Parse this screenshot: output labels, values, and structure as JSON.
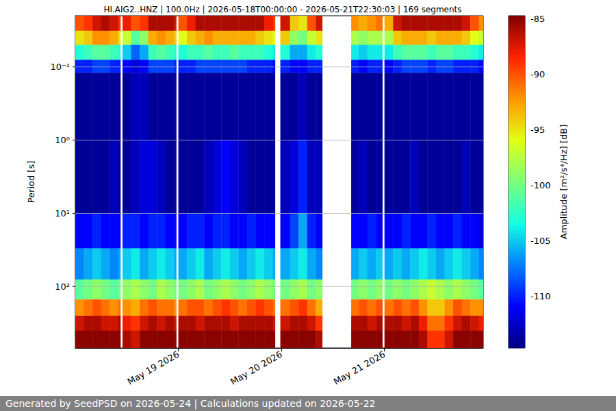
{
  "chart_data": {
    "type": "heatmap",
    "title": "HI.AIG2..HNZ | 100.0Hz | 2026-05-18T00:00:00 - 2026-05-21T22:30:03 | 169 segments",
    "y_label": "Period [s]",
    "footer": "Generated by SeedPSD on 2026-05-24 | Calculations updated on 2026-05-22",
    "log": "y",
    "grid": true,
    "xlim": [
      "2026-05-18T00:00:00",
      "2026-05-21T23:00:00"
    ],
    "xticks": [
      {
        "value": "2026-05-19T00:00:00",
        "label": "May 19 2026"
      },
      {
        "value": "2026-05-20T00:00:00",
        "label": "May 20 2026"
      },
      {
        "value": "2026-05-21T00:00:00",
        "label": "May 21 2026"
      }
    ],
    "ylim": [
      0.02,
      690
    ],
    "yticks": [
      {
        "value": 0.1,
        "label": "10⁻¹"
      },
      {
        "value": 1,
        "label": "10⁰"
      },
      {
        "value": 10,
        "label": "10¹"
      },
      {
        "value": 100,
        "label": "10²"
      }
    ],
    "x_bins": [
      "2026-05-18T00:00:00",
      "2026-05-18T02:00:00",
      "2026-05-18T04:00:00",
      "2026-05-18T06:00:00",
      "2026-05-18T08:00:00",
      "2026-05-18T10:00:00",
      "2026-05-18T10:30:00",
      "2026-05-18T11:00:00",
      "2026-05-18T13:00:00",
      "2026-05-18T15:00:00",
      "2026-05-18T17:00:00",
      "2026-05-18T19:00:00",
      "2026-05-18T21:00:00",
      "2026-05-18T23:00:00",
      "2026-05-18T23:30:00",
      "2026-05-19T00:00:00",
      "2026-05-19T02:00:00",
      "2026-05-19T04:00:00",
      "2026-05-19T06:00:00",
      "2026-05-19T08:00:00",
      "2026-05-19T10:00:00",
      "2026-05-19T12:00:00",
      "2026-05-19T14:00:00",
      "2026-05-19T16:00:00",
      "2026-05-19T18:00:00",
      "2026-05-19T20:00:00",
      "2026-05-19T22:00:00",
      "2026-05-19T22:30:00",
      "2026-05-19T23:45:00",
      "2026-05-20T02:00:00",
      "2026-05-20T04:00:00",
      "2026-05-20T06:00:00",
      "2026-05-20T08:00:00",
      "2026-05-20T09:30:00",
      "2026-05-20T16:15:00",
      "2026-05-20T18:00:00",
      "2026-05-20T20:00:00",
      "2026-05-20T22:00:00",
      "2026-05-20T23:30:00",
      "2026-05-21T00:00:00",
      "2026-05-21T02:00:00",
      "2026-05-21T04:00:00",
      "2026-05-21T06:00:00",
      "2026-05-21T08:00:00",
      "2026-05-21T10:00:00",
      "2026-05-21T12:00:00",
      "2026-05-21T14:00:00",
      "2026-05-21T16:00:00",
      "2026-05-21T18:00:00",
      "2026-05-21T20:00:00",
      "2026-05-21T22:00:00",
      "2026-05-21T23:00:00"
    ],
    "y_bins": [
      0.02,
      0.032,
      0.05,
      0.08,
      0.12,
      1,
      10,
      30,
      80,
      150,
      250,
      400,
      690
    ],
    "values": [
      [
        -90,
        -89,
        -87,
        -86,
        -87,
        -89,
        null,
        -88,
        -90,
        -89,
        -86,
        -86,
        -86,
        -87,
        null,
        -90,
        -88,
        -86,
        -86,
        -86,
        -86,
        -86,
        -86,
        -86,
        -86,
        -88,
        -89,
        null,
        -87,
        -94,
        -95,
        -90,
        -87,
        null,
        -92,
        -93,
        -92,
        -91,
        null,
        -93,
        -87,
        -86,
        -86,
        -86,
        -86,
        -86,
        -86,
        -86,
        -87,
        -90,
        -92
      ],
      [
        -95,
        -94,
        -92,
        -92,
        -93,
        -95,
        null,
        -97,
        -101,
        -99,
        -93,
        -92,
        -93,
        -94,
        null,
        -96,
        -94,
        -93,
        -92,
        -93,
        -93,
        -93,
        -93,
        -93,
        -94,
        -95,
        -96,
        null,
        -94,
        -99,
        -100,
        -97,
        -95,
        null,
        -98,
        -99,
        -98,
        -98,
        null,
        -98,
        -94,
        -93,
        -93,
        -93,
        -94,
        -93,
        -93,
        -93,
        -94,
        -96,
        -97
      ],
      [
        -103,
        -102,
        -101,
        -101,
        -102,
        -103,
        null,
        -105,
        -108,
        -106,
        -102,
        -101,
        -102,
        -103,
        null,
        -103,
        -102,
        -102,
        -101,
        -102,
        -102,
        -101,
        -102,
        -102,
        -102,
        -103,
        -104,
        null,
        -103,
        -106,
        -106,
        -104,
        -103,
        null,
        -104,
        -105,
        -104,
        -104,
        null,
        -104,
        -102,
        -101,
        -101,
        -101,
        -102,
        -101,
        -101,
        -102,
        -102,
        -103,
        -104
      ],
      [
        -110,
        -110,
        -109,
        -109,
        -110,
        -110,
        null,
        -111,
        -112,
        -111,
        -109,
        -109,
        -109,
        -110,
        null,
        -110,
        -110,
        -109,
        -109,
        -109,
        -109,
        -109,
        -109,
        -110,
        -110,
        -110,
        -111,
        null,
        -110,
        -111,
        -111,
        -110,
        -110,
        null,
        -110,
        -111,
        -110,
        -110,
        null,
        -111,
        -110,
        -109,
        -109,
        -109,
        -110,
        -109,
        -109,
        -110,
        -110,
        -110,
        -111
      ],
      [
        -114,
        -114,
        -114,
        -114,
        -114,
        -114,
        null,
        -114,
        -113,
        -113,
        -114,
        -114,
        -114,
        -114,
        null,
        -114,
        -114,
        -114,
        -114,
        -114,
        -114,
        -114,
        -114,
        -114,
        -114,
        -114,
        -114,
        null,
        -114,
        -114,
        -113,
        -114,
        -114,
        null,
        -114,
        -114,
        -114,
        -114,
        null,
        -114,
        -114,
        -114,
        -114,
        -114,
        -114,
        -114,
        -114,
        -114,
        -114,
        -114,
        -114
      ],
      [
        -114,
        -114,
        -114,
        -114,
        -113,
        -114,
        null,
        -114,
        -113,
        -112,
        -112,
        -113,
        -114,
        -114,
        null,
        -114,
        -114,
        -114,
        -113,
        -112,
        -111,
        -112,
        -113,
        -114,
        -114,
        -114,
        -114,
        null,
        -113,
        -112,
        -110,
        -113,
        -113,
        null,
        -114,
        -113,
        -114,
        -114,
        null,
        -114,
        -114,
        -114,
        -113,
        -114,
        -114,
        -114,
        -114,
        -114,
        -113,
        -114,
        -114
      ],
      [
        -111,
        -111,
        -110,
        -111,
        -111,
        -111,
        null,
        -110,
        -110,
        -111,
        -110,
        -110,
        -111,
        -111,
        null,
        -111,
        -110,
        -110,
        -111,
        -110,
        -110,
        -111,
        -111,
        -110,
        -111,
        -111,
        -111,
        null,
        -111,
        -109,
        -106,
        -110,
        -111,
        null,
        -111,
        -111,
        -110,
        -111,
        null,
        -111,
        -111,
        -110,
        -111,
        -111,
        -110,
        -111,
        -111,
        -110,
        -111,
        -111,
        -112
      ],
      [
        -107,
        -106,
        -105,
        -106,
        -107,
        -106,
        null,
        -105,
        -104,
        -106,
        -105,
        -104,
        -105,
        -106,
        null,
        -106,
        -105,
        -104,
        -106,
        -105,
        -104,
        -105,
        -106,
        -105,
        -104,
        -105,
        -106,
        null,
        -106,
        -105,
        -104,
        -106,
        -107,
        null,
        -106,
        -105,
        -106,
        -105,
        null,
        -106,
        -105,
        -106,
        -105,
        -104,
        -105,
        -106,
        -105,
        -104,
        -105,
        -106,
        -107
      ],
      [
        -101,
        -100,
        -99,
        -100,
        -101,
        -100,
        null,
        -99,
        -98,
        -99,
        -100,
        -98,
        -99,
        -100,
        null,
        -100,
        -99,
        -98,
        -100,
        -99,
        -98,
        -99,
        -100,
        -99,
        -98,
        -99,
        -100,
        null,
        -100,
        -99,
        -98,
        -100,
        -99,
        null,
        -100,
        -99,
        -100,
        -99,
        null,
        -100,
        -99,
        -100,
        -99,
        -98,
        -97,
        -98,
        -99,
        -98,
        -99,
        -100,
        -101
      ],
      [
        -92,
        -91,
        -90,
        -91,
        -92,
        -91,
        null,
        -92,
        -93,
        -91,
        -90,
        -91,
        -91,
        -92,
        null,
        -91,
        -90,
        -90,
        -91,
        -90,
        -89,
        -90,
        -91,
        -90,
        -89,
        -90,
        -91,
        null,
        -91,
        -90,
        -89,
        -91,
        -93,
        null,
        -91,
        -90,
        -91,
        -90,
        null,
        -91,
        -90,
        -91,
        -90,
        -92,
        -94,
        -94,
        -92,
        -90,
        -91,
        -92,
        -92
      ],
      [
        -87,
        -86,
        -86,
        -87,
        -87,
        -86,
        null,
        -88,
        -89,
        -87,
        -86,
        -87,
        -86,
        -87,
        null,
        -86,
        -86,
        -87,
        -86,
        -86,
        -86,
        -87,
        -86,
        -86,
        -86,
        -86,
        -87,
        null,
        -87,
        -86,
        -86,
        -87,
        -89,
        null,
        -86,
        -86,
        -87,
        -86,
        null,
        -86,
        -86,
        -87,
        -86,
        -88,
        -91,
        -91,
        -89,
        -87,
        -86,
        -87,
        -88
      ],
      [
        -85,
        -85,
        -85,
        -85,
        -85,
        -85,
        null,
        -86,
        -87,
        -85,
        -85,
        -85,
        -85,
        -85,
        null,
        -85,
        -85,
        -85,
        -85,
        -85,
        -85,
        -85,
        -85,
        -85,
        -85,
        -85,
        -85,
        null,
        -85,
        -85,
        -85,
        -85,
        -86,
        null,
        -85,
        -85,
        -85,
        -85,
        null,
        -85,
        -85,
        -85,
        -85,
        -86,
        -89,
        -89,
        -87,
        -85,
        -85,
        -85,
        -85
      ]
    ],
    "colorbar": {
      "label": "Amplitude [m²/s⁴/Hz] [dB]",
      "range": [
        -114.7,
        -84.7
      ],
      "ticks": [
        -110,
        -105,
        -100,
        -95,
        -90,
        -85
      ]
    }
  }
}
